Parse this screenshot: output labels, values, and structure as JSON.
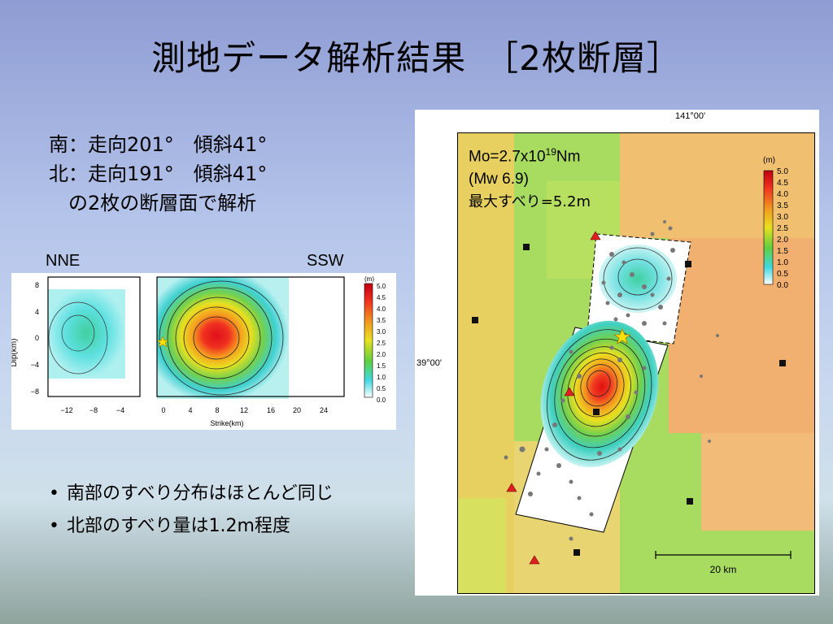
{
  "slide": {
    "title": "測地データ解析結果　［2枚断層］",
    "south_line": "南：走向201°　傾斜41°",
    "north_line": "北：走向191°　傾斜41°",
    "analysis_line": "の2枚の断層面で解析",
    "label_nne": "NNE",
    "label_ssw": "SSW",
    "bullets": [
      "南部のすべり分布はほとんど同じ",
      "北部のすべり量は1.2m程度"
    ]
  },
  "slip_figure": {
    "y_axis_label": "Dip(km)",
    "y_ticks": [
      "8",
      "4",
      "0",
      "−4",
      "−8"
    ],
    "x_ticks_left": [
      "−12",
      "−8",
      "−4"
    ],
    "x_ticks_right": [
      "0",
      "4",
      "8",
      "12",
      "16",
      "20",
      "24"
    ],
    "x_axis_label": "Strike(km)",
    "colorbar_unit": "(m)",
    "colorbar_ticks": [
      "5.0",
      "4.5",
      "4.0",
      "3.5",
      "3.0",
      "2.5",
      "2.0",
      "1.5",
      "1.0",
      "0.5",
      "0.0"
    ]
  },
  "map": {
    "longitude_label": "141°00'",
    "latitude_label": "39°00'",
    "mo_prefix": "Mo=2.7x10",
    "mo_exp": "19",
    "mo_suffix": "Nm",
    "mw_line": "(Mw 6.9)",
    "max_slip_line": "最大すべり=5.2m",
    "colorbar_unit": "(m)",
    "colorbar_ticks": [
      "5.0",
      "4.5",
      "4.0",
      "3.5",
      "3.0",
      "2.5",
      "2.0",
      "1.5",
      "1.0",
      "0.5",
      "0.0"
    ],
    "scale_label": "20 km"
  }
}
